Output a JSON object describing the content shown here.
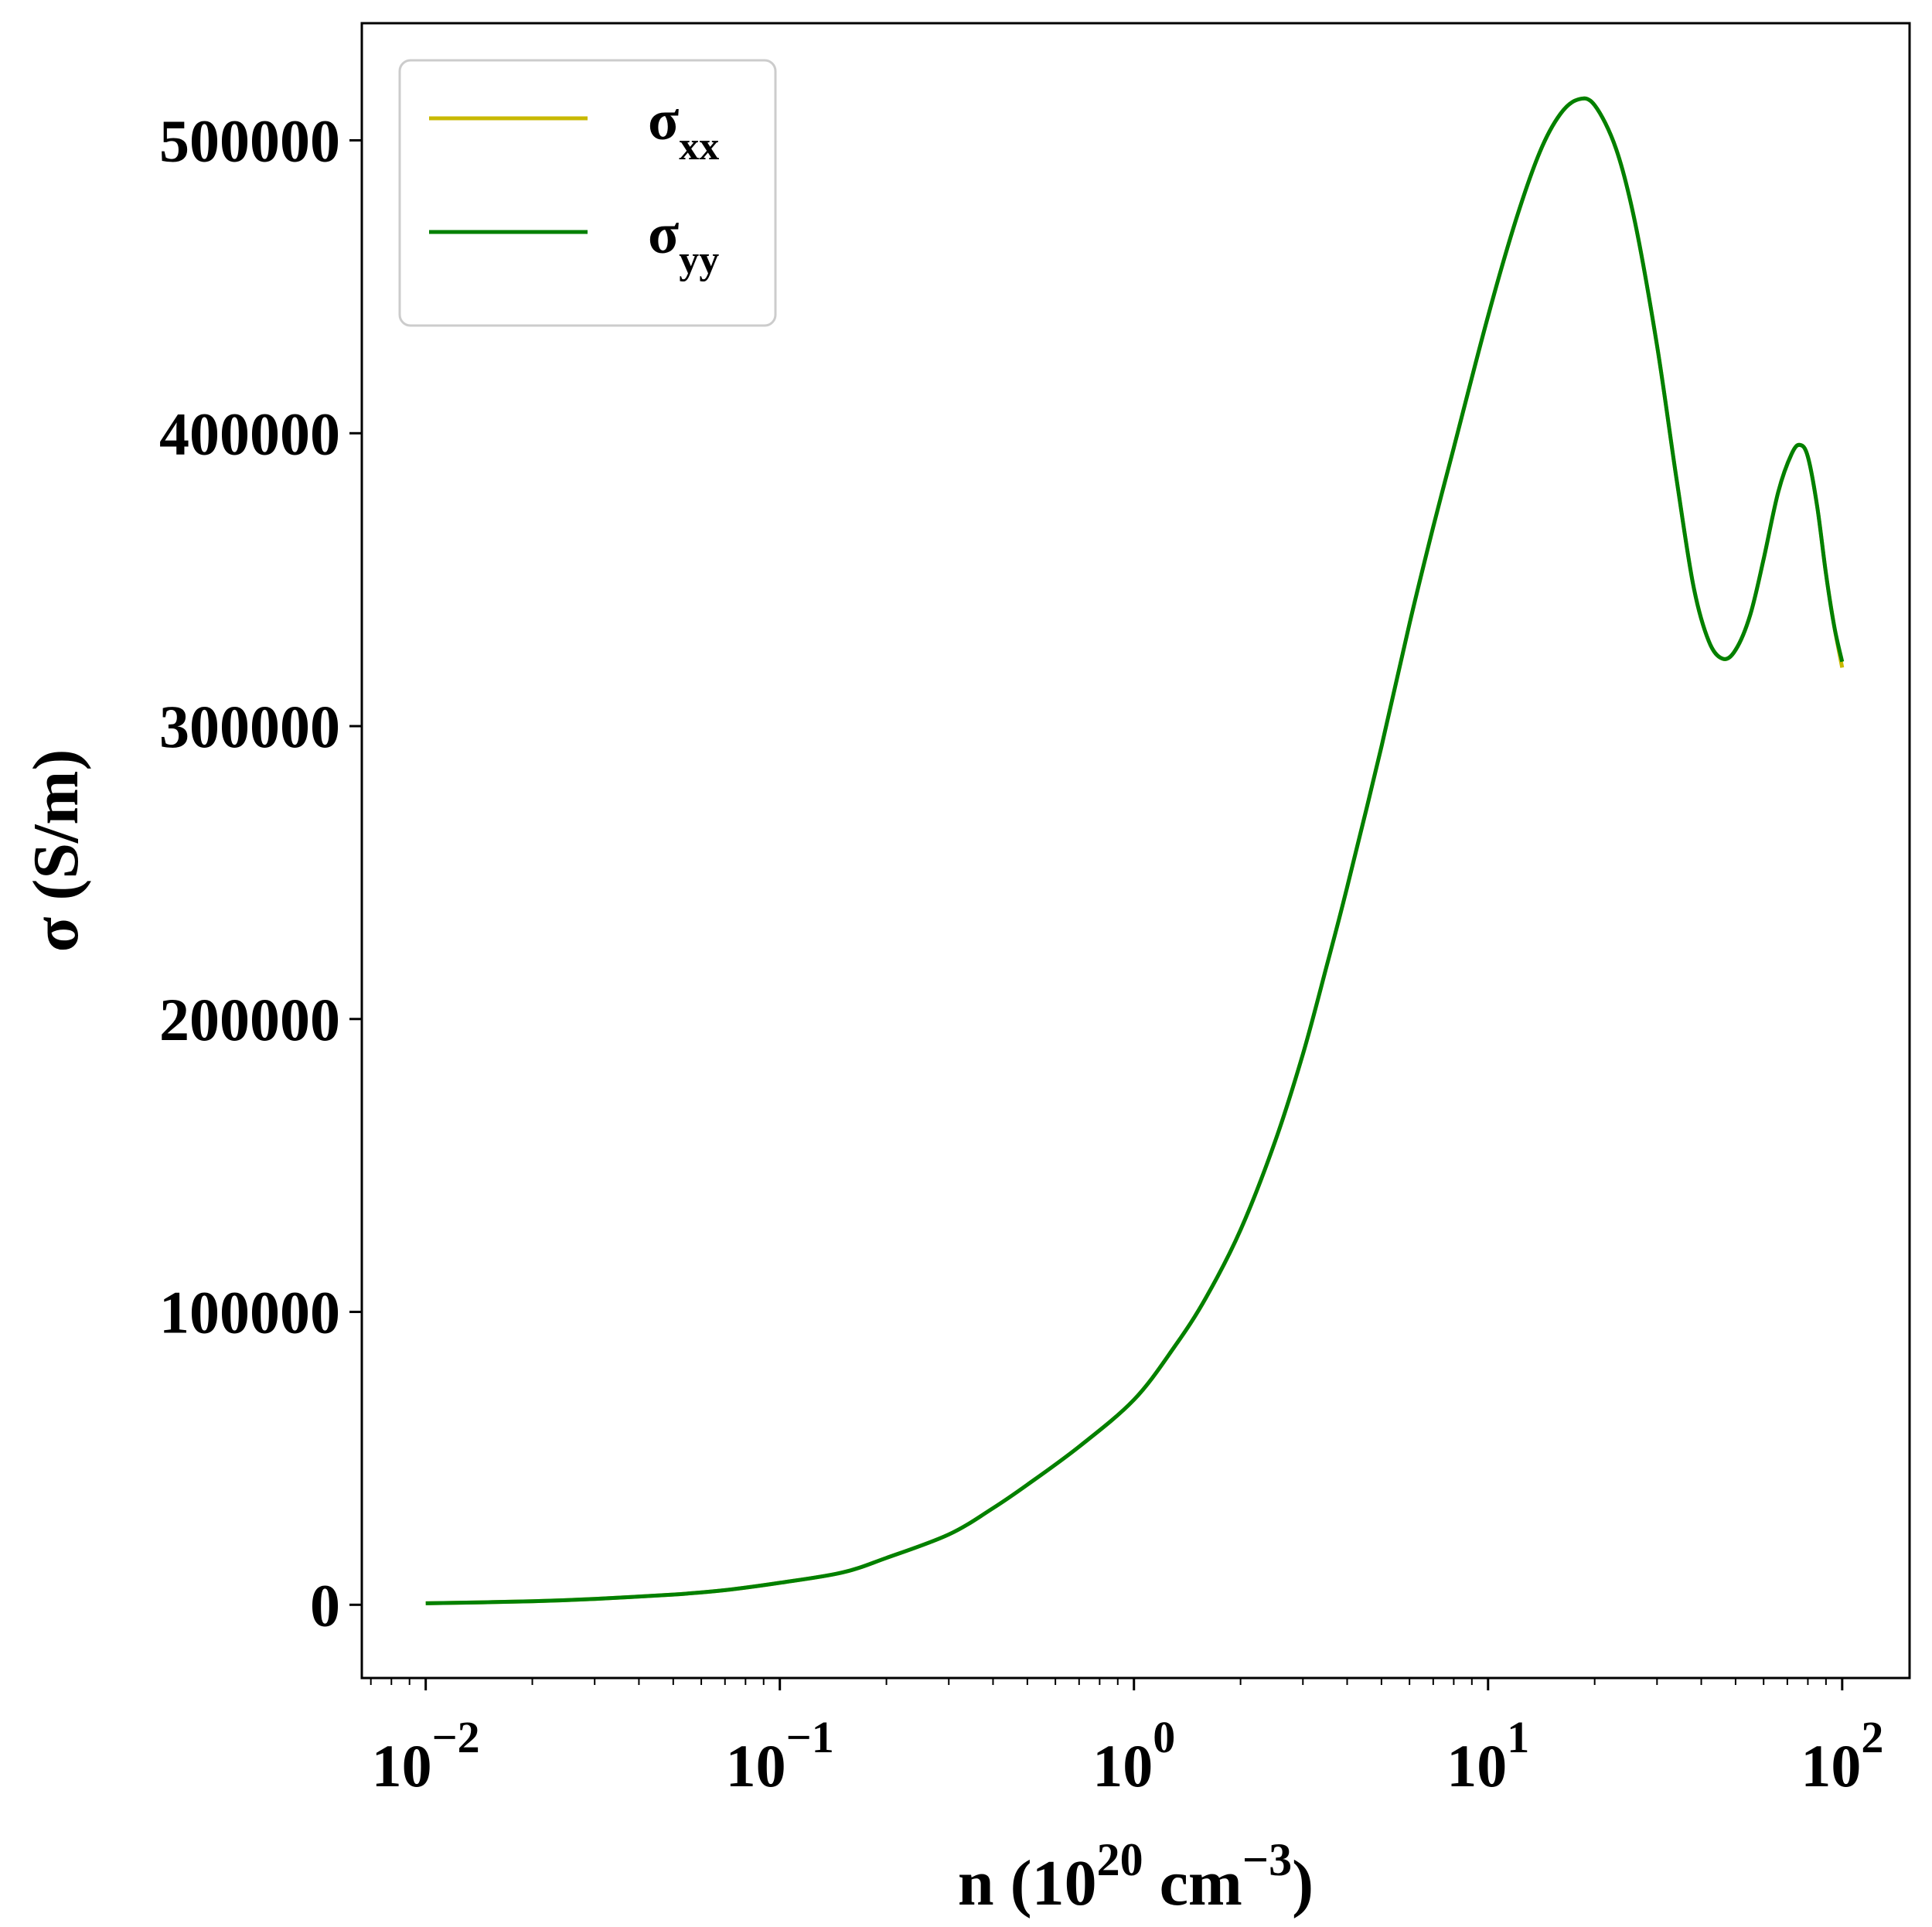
{
  "chart_data": {
    "type": "line",
    "title": "",
    "xlabel": {
      "base": "n (10",
      "exp1": "20",
      "mid": " cm",
      "exp2": "−3",
      "end": ")"
    },
    "ylabel": "σ (S/m)",
    "xscale": "log",
    "xlim": [
      0.0066,
      155
    ],
    "ylim": [
      -25000,
      540000
    ],
    "grid": false,
    "legend_placement": "top-left",
    "x_ticks": [
      {
        "value": 0.01,
        "base": "10",
        "exp": "−2"
      },
      {
        "value": 0.1,
        "base": "10",
        "exp": "−1"
      },
      {
        "value": 1,
        "base": "10",
        "exp": "0"
      },
      {
        "value": 10,
        "base": "10",
        "exp": "1"
      },
      {
        "value": 100,
        "base": "10",
        "exp": "2"
      }
    ],
    "y_ticks": [
      {
        "value": 0,
        "label": "0"
      },
      {
        "value": 100000,
        "label": "100000"
      },
      {
        "value": 200000,
        "label": "200000"
      },
      {
        "value": 300000,
        "label": "300000"
      },
      {
        "value": 400000,
        "label": "400000"
      },
      {
        "value": 500000,
        "label": "500000"
      }
    ],
    "x": [
      0.01,
      0.02,
      0.03,
      0.05,
      0.07,
      0.1,
      0.15,
      0.2,
      0.3,
      0.4,
      0.5,
      0.7,
      1.0,
      1.3,
      1.6,
      2.0,
      2.5,
      3.0,
      3.5,
      4.0,
      5.0,
      6.0,
      7.0,
      8.0,
      10.0,
      12.0,
      14.0,
      16.0,
      18.0,
      20.0,
      23.0,
      26.0,
      30.0,
      34.0,
      38.0,
      42.0,
      46.0,
      50.0,
      55.0,
      60.0,
      66.0,
      72.0,
      76.0,
      80.0,
      85.0,
      90.0,
      95.0,
      100.0
    ],
    "series": [
      {
        "name": "σ",
        "name_sub": "xx",
        "color": "#c8b900",
        "values": [
          500,
          1200,
          2000,
          3500,
          5000,
          7500,
          11000,
          16000,
          24000,
          33000,
          41000,
          54000,
          70000,
          88000,
          105000,
          128000,
          158000,
          188000,
          218000,
          245000,
          293000,
          335000,
          368000,
          395000,
          440000,
          473000,
          496000,
          509000,
          514000,
          512000,
          497000,
          472000,
          430000,
          385000,
          348000,
          329000,
          323000,
          326000,
          338000,
          357000,
          380000,
          393000,
          396000,
          392000,
          375000,
          352000,
          334000,
          320000
        ]
      },
      {
        "name": "σ",
        "name_sub": "yy",
        "color": "#008000",
        "values": [
          500,
          1200,
          2000,
          3500,
          5000,
          7500,
          11000,
          16000,
          24000,
          33000,
          41000,
          54000,
          70000,
          88000,
          105000,
          128000,
          158000,
          188000,
          218000,
          245000,
          293000,
          335000,
          368000,
          395000,
          440000,
          473000,
          496000,
          509000,
          514000,
          512000,
          497000,
          472000,
          430000,
          385000,
          348000,
          329000,
          323000,
          326000,
          338000,
          357000,
          380000,
          393000,
          396000,
          392000,
          375000,
          352000,
          334000,
          322000
        ]
      }
    ]
  }
}
